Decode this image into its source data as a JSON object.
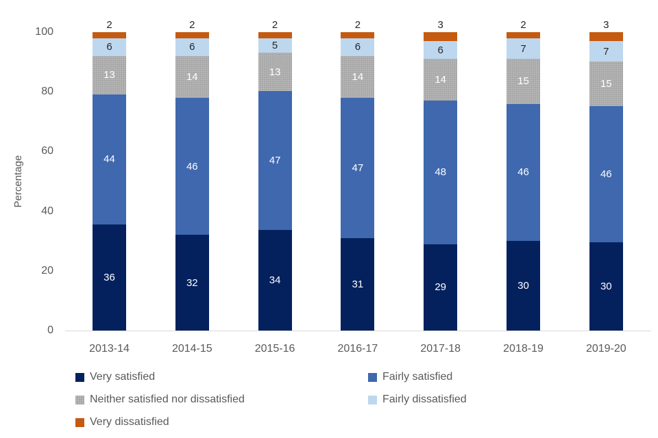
{
  "chart_data": {
    "type": "bar",
    "stacked": true,
    "percent_stacked": true,
    "title": "",
    "xlabel": "",
    "ylabel": "Percentage",
    "ylim": [
      0,
      100
    ],
    "yticks": [
      "0",
      "20",
      "40",
      "60",
      "80",
      "100"
    ],
    "grid": false,
    "legend_position": "bottom",
    "legend_columns": 2,
    "categories": [
      "2013-14",
      "2014-15",
      "2015-16",
      "2016-17",
      "2017-18",
      "2018-19",
      "2019-20"
    ],
    "series": [
      {
        "name": "Very satisfied",
        "color": "#04215e",
        "label_color": "#ffffff",
        "pattern": false,
        "label_outside": false,
        "values": [
          36,
          32,
          34,
          31,
          29,
          30,
          30
        ]
      },
      {
        "name": "Fairly satisfied",
        "color": "#3f68ae",
        "label_color": "#ffffff",
        "pattern": false,
        "label_outside": false,
        "values": [
          44,
          46,
          47,
          47,
          48,
          46,
          46
        ]
      },
      {
        "name": "Neither satisfied nor dissatisfied",
        "color": "#a6a6a6",
        "label_color": "#ffffff",
        "pattern": true,
        "label_outside": false,
        "values": [
          13,
          14,
          13,
          14,
          14,
          15,
          15
        ]
      },
      {
        "name": "Fairly dissatisfied",
        "color": "#bdd7ee",
        "label_color": "#262626",
        "pattern": false,
        "label_outside": false,
        "values": [
          6,
          6,
          5,
          6,
          6,
          7,
          7
        ]
      },
      {
        "name": "Very dissatisfied",
        "color": "#c55a11",
        "label_color": "#262626",
        "pattern": false,
        "label_outside": true,
        "values": [
          2,
          2,
          2,
          2,
          3,
          2,
          3
        ]
      }
    ],
    "colors": {
      "axis_text": "#595959",
      "outside_label_text": "#262626",
      "baseline": "#d9d9d9",
      "background": "#ffffff"
    }
  }
}
